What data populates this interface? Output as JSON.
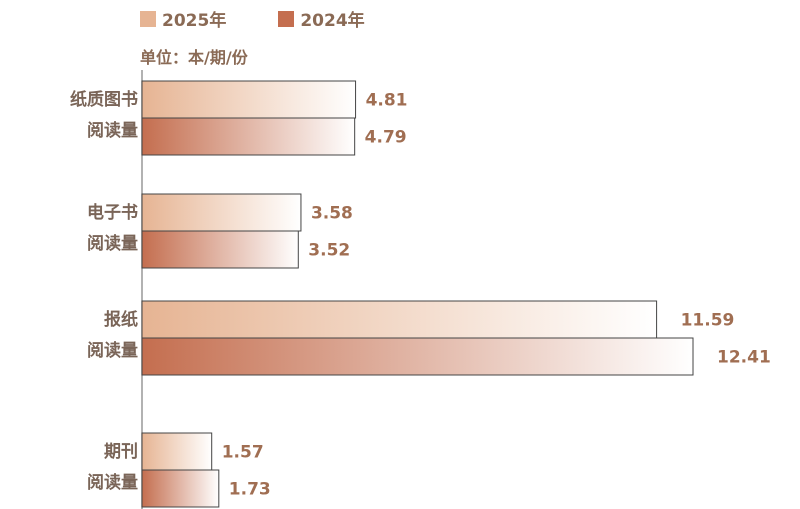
{
  "chart_data": {
    "type": "bar",
    "orientation": "horizontal",
    "unit": "单位：本/期/份",
    "categories": [
      [
        "纸质图书",
        "阅读量"
      ],
      [
        "电子书",
        "阅读量"
      ],
      [
        "报纸",
        "阅读量"
      ],
      [
        "期刊",
        "阅读量"
      ]
    ],
    "series": [
      {
        "name": "2025年",
        "color": "#e6b493",
        "values": [
          4.81,
          3.58,
          11.59,
          1.57
        ]
      },
      {
        "name": "2024年",
        "color": "#c46e4f",
        "values": [
          4.79,
          3.52,
          12.41,
          1.73
        ]
      }
    ],
    "legend_position": "top-left",
    "grid": false
  }
}
